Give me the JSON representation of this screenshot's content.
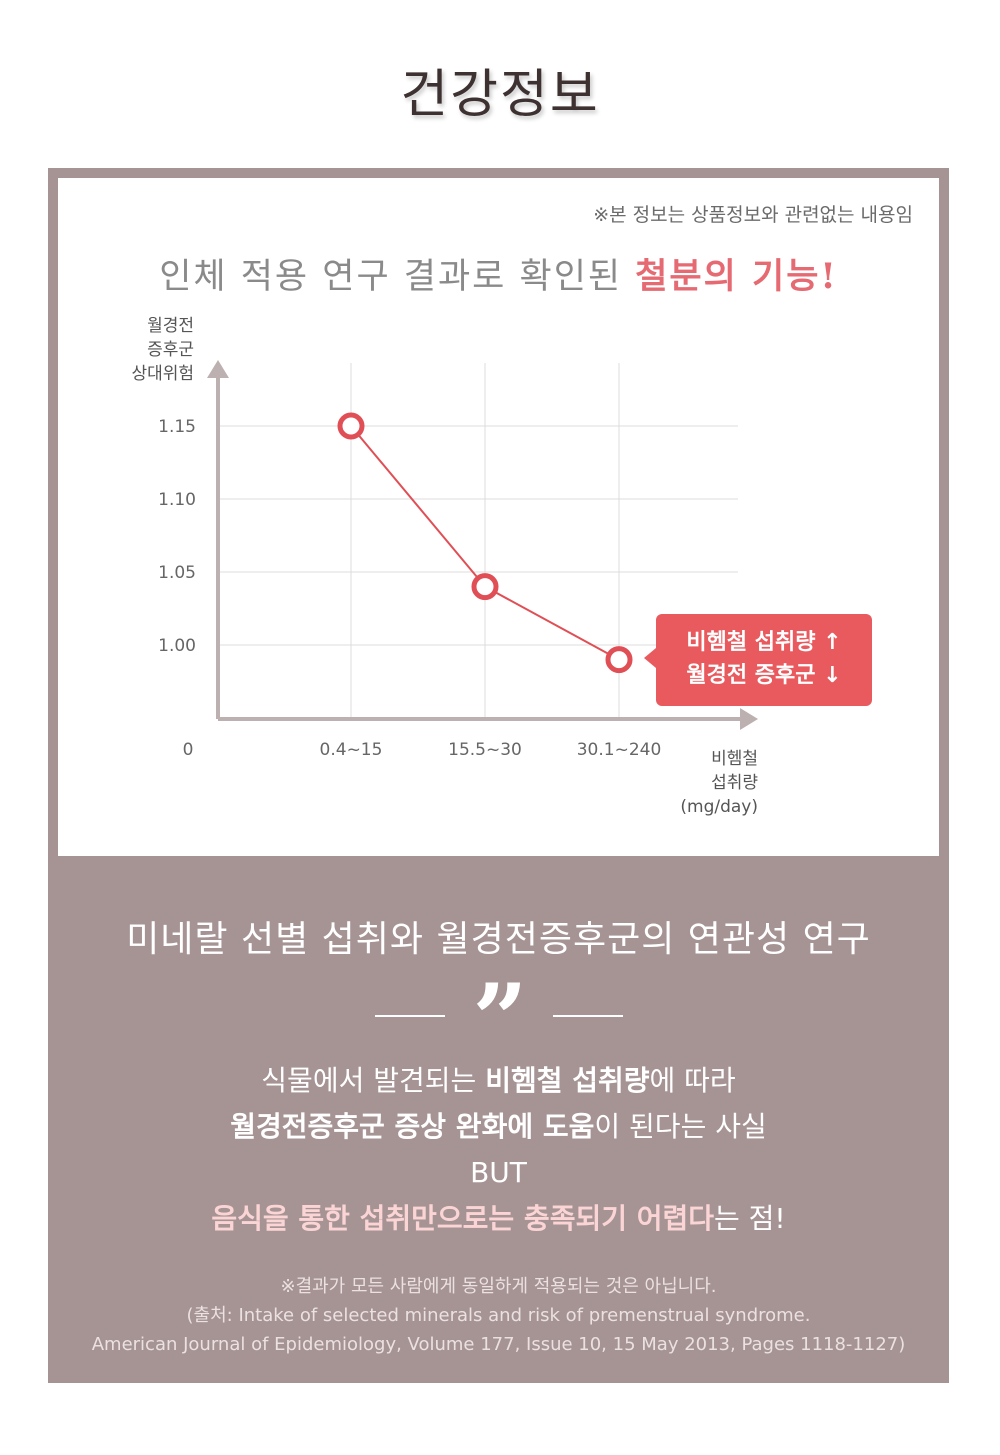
{
  "page_title": "건강정보",
  "disclaimer": "※본 정보는 상품정보와 관련없는 내용임",
  "headline": {
    "prefix": "인체 적용 연구 결과로 확인된 ",
    "highlight": "철분의 기능!"
  },
  "chart_data": {
    "type": "line",
    "ylabel_lines": [
      "월경전",
      "증후군",
      "상대위험"
    ],
    "xlabel_lines": [
      "비헴철",
      "섭취량",
      "(mg/day)"
    ],
    "origin_label": "0",
    "y_ticks": [
      1.0,
      1.05,
      1.1,
      1.15
    ],
    "y_tick_labels": [
      "1.00",
      "1.05",
      "1.10",
      "1.15"
    ],
    "categories": [
      "0.4~15",
      "15.5~30",
      "30.1~240"
    ],
    "series": [
      {
        "values": [
          1.15,
          1.04,
          0.99
        ]
      }
    ],
    "grid": true,
    "colors": {
      "line": "#e04f55",
      "axis": "#bcb0b1",
      "grid": "#dcdcdc"
    }
  },
  "callout": {
    "line1": "비헴철 섭취량 ↑",
    "line2": "월경전 증후군 ↓"
  },
  "study_title": "미네랄 선별 섭취와 월경전증후군의 연관성 연구",
  "quote_mark": "”",
  "summary": {
    "l1_pre": "식물에서 발견되는 ",
    "l1_bold": "비헴철 섭취량",
    "l1_post": "에 따라",
    "l2_bold1": "월경전증후군 증상 완화",
    "l2_mid": "에 ",
    "l2_bold2": "도움",
    "l2_post": "이 된다는 사실",
    "l3": "BUT",
    "l4_pink": "음식을 통한 섭취만으로는 충족되기 어렵다",
    "l4_post": "는 점!"
  },
  "footnotes": [
    "※결과가 모든 사람에게 동일하게 적용되는 것은 아닙니다.",
    "(출처: Intake of selected minerals and risk of premenstrual syndrome.",
    "American Journal of Epidemiology, Volume 177, Issue 10, 15 May 2013, Pages 1118-1127)"
  ]
}
